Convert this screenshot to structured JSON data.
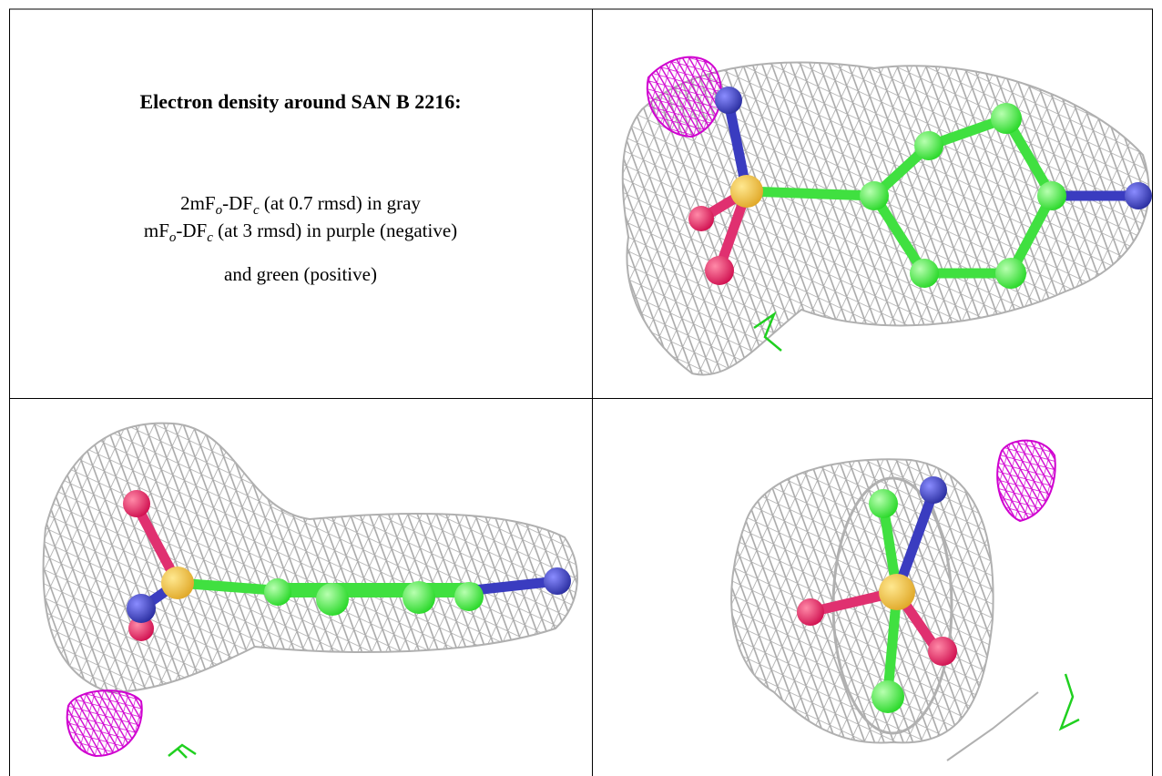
{
  "header": {
    "title": "Electron density around SAN B 2216:"
  },
  "description": {
    "lines": [
      [
        "2mF",
        "o",
        "-DF",
        "c",
        " (at 0.7 rmsd) in gray"
      ],
      [
        "mF",
        "o",
        "-DF",
        "c",
        " (at 3 rmsd) in purple (negative)"
      ],
      [
        "and green (positive)"
      ]
    ]
  }
}
